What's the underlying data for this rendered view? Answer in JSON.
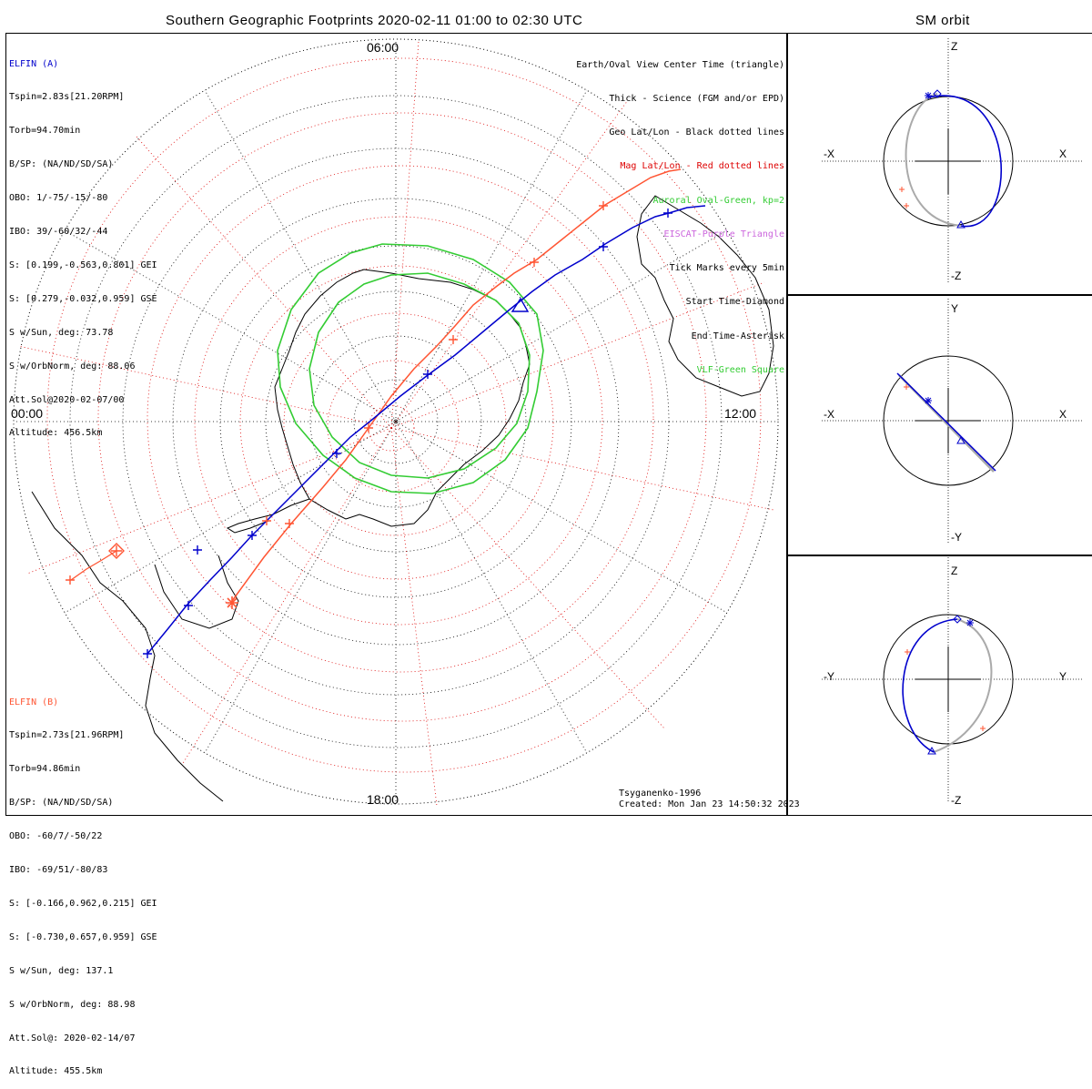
{
  "header": {
    "main_title": "Southern Geographic Footprints 2020-02-11 01:00 to 02:30 UTC",
    "orbit_title": "SM orbit"
  },
  "time_labels": {
    "top": "06:00",
    "left": "00:00",
    "right": "12:00",
    "bottom": "18:00"
  },
  "elfin_a": {
    "name": "ELFIN (A)",
    "color": "#0000cc",
    "lines": [
      "Tspin=2.83s[21.20RPM]",
      "Torb=94.70min",
      "B/SP: (NA/ND/SD/SA)",
      "OBO: 1/-75/-15/-80",
      "IBO: 39/-60/32/-44",
      "S: [0.199,-0.563,0.801] GEI",
      "S: [0.279,-0.032,0.959] GSE",
      "S w/Sun, deg: 73.78",
      "S w/OrbNorm, deg: 88.06",
      "Att.Sol@2020-02-07/00",
      "Altitude: 456.5km"
    ]
  },
  "elfin_b": {
    "name": "ELFIN (B)",
    "color": "#ff5533",
    "lines": [
      "Tspin=2.73s[21.96RPM]",
      "Torb=94.86min",
      "B/SP: (NA/ND/SD/SA)",
      "OBO: -60/7/-50/22",
      "IBO: -69/51/-80/83",
      "S: [-0.166,0.962,0.215] GEI",
      "S: [-0.730,0.657,0.959] GSE",
      "S w/Sun, deg: 137.1",
      "S w/OrbNorm, deg: 88.98",
      "Att.Sol@: 2020-02-14/07",
      "Altitude: 455.5km"
    ]
  },
  "legend": [
    {
      "text": "Earth/Oval View Center Time (triangle)",
      "color": "#000000"
    },
    {
      "text": "Thick - Science (FGM and/or EPD)",
      "color": "#000000"
    },
    {
      "text": "Geo Lat/Lon - Black dotted lines",
      "color": "#000000"
    },
    {
      "text": "Mag Lat/Lon - Red dotted lines",
      "color": "#dd0000"
    },
    {
      "text": "Auroral Oval-Green, kp=2",
      "color": "#33cc33"
    },
    {
      "text": "EISCAT-Purple Triangle",
      "color": "#cc66dd"
    },
    {
      "text": "Tick Marks every 5min",
      "color": "#000000"
    },
    {
      "text": "Start Time-Diamond",
      "color": "#000000"
    },
    {
      "text": "End Time-Asterisk",
      "color": "#000000"
    },
    {
      "text": "VLF-Green Square",
      "color": "#33cc33"
    }
  ],
  "footer": {
    "model": "Tsyganenko-1996",
    "created": "Created: Mon Jan 23 14:50:32 2023"
  },
  "orbit_panels": [
    {
      "left": "-X",
      "right": "X",
      "top": "Z",
      "bottom": "-Z"
    },
    {
      "left": "-X",
      "right": "X",
      "top": "Y",
      "bottom": "-Y"
    },
    {
      "left": "-Y",
      "right": "Y",
      "top": "Z",
      "bottom": "-Z"
    }
  ],
  "colors": {
    "elfin_a": "#0000cc",
    "elfin_b": "#ff5533",
    "aurora": "#33cc33",
    "mag_grid": "#dd0000",
    "geo_grid": "#000000",
    "orbit_back": "#aaaaaa"
  }
}
